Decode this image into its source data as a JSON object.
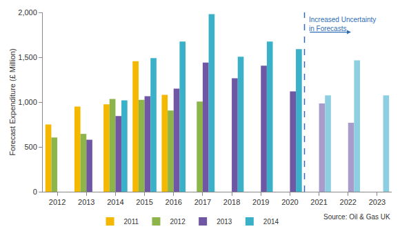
{
  "chart_data": {
    "type": "bar",
    "y_label": "Forecast Expenditure (£ Million)",
    "categories": [
      "2012",
      "2013",
      "2014",
      "2015",
      "2016",
      "2017",
      "2018",
      "2019",
      "2020",
      "2021",
      "2022",
      "2023"
    ],
    "series": [
      {
        "name": "2011",
        "color": "#F5B800",
        "values": [
          750,
          950,
          975,
          1455,
          1080,
          null,
          null,
          null,
          null,
          null,
          null,
          null
        ]
      },
      {
        "name": "2012",
        "color": "#8DB54A",
        "values": [
          605,
          645,
          1035,
          1025,
          905,
          1005,
          null,
          null,
          null,
          null,
          null,
          null
        ]
      },
      {
        "name": "2013",
        "color": "#6F57A3",
        "colors": [
          "#6F57A3",
          "#6F57A3",
          "#6F57A3",
          "#6F57A3",
          "#6F57A3",
          "#6F57A3",
          "#6F57A3",
          "#6F57A3",
          "#6F57A3",
          "#A99BCB",
          "#A99BCB",
          "#A99BCB"
        ],
        "values": [
          null,
          580,
          845,
          1065,
          1150,
          1440,
          1265,
          1405,
          1120,
          985,
          770,
          null
        ]
      },
      {
        "name": "2014",
        "color": "#3BB0C9",
        "colors": [
          "#3BB0C9",
          "#3BB0C9",
          "#3BB0C9",
          "#3BB0C9",
          "#3BB0C9",
          "#3BB0C9",
          "#3BB0C9",
          "#3BB0C9",
          "#3BB0C9",
          "#8DCFE0",
          "#8DCFE0",
          "#8DCFE0"
        ],
        "values": [
          null,
          null,
          1020,
          1490,
          1675,
          1980,
          1505,
          1675,
          1590,
          1075,
          1465,
          1075
        ]
      }
    ],
    "ylim": [
      0,
      2000
    ],
    "yticks": [
      0,
      500,
      {
        "value": 1000,
        "label": "1,000"
      },
      {
        "value": 1500,
        "label": "1,500"
      },
      {
        "value": 2000,
        "label": "2,000"
      }
    ],
    "grid": false,
    "legend": "bottom",
    "annotation": [
      "Increased Uncertainty",
      "in Forecasts"
    ],
    "source": "Source: Oil & Gas UK"
  }
}
